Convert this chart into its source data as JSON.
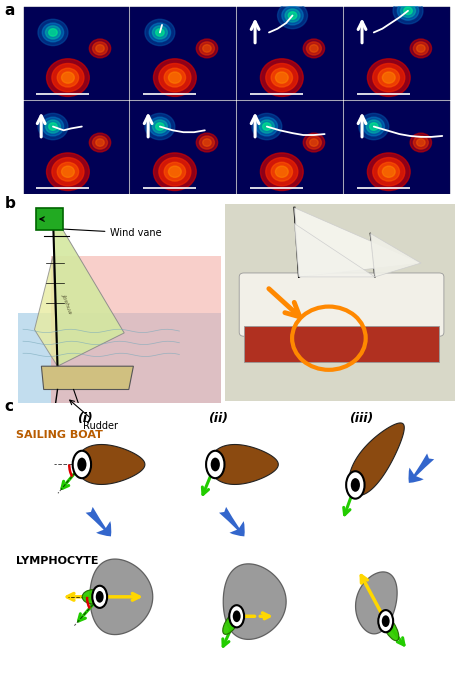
{
  "fig_width": 4.6,
  "fig_height": 6.77,
  "dpi": 100,
  "bg_color": "#ffffff",
  "panel_a_label": "a",
  "panel_b_label": "b",
  "panel_c_label": "c",
  "col_labels": [
    "(i)",
    "(ii)",
    "(iii)"
  ],
  "sailing_boat_color": "#8B4A10",
  "lymphocyte_color": "#909090",
  "green_color": "#22CC00",
  "yellow_color": "#FFD700",
  "blue_arrow_color": "#3366CC",
  "red_arc_color": "#DD0000",
  "wind_vane_label": "Wind vane",
  "rudder_label": "Rudder",
  "microscopy_bg": "#00004A",
  "title_color": "#B85C00",
  "lymphocyte_label_color": "#000000"
}
